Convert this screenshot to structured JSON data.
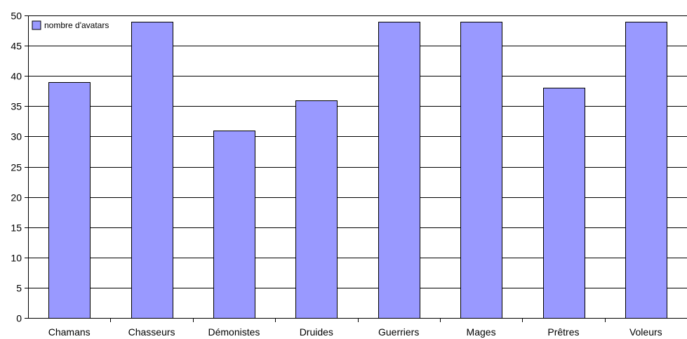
{
  "chart_data": {
    "type": "bar",
    "categories": [
      "Chamans",
      "Chasseurs",
      "Démonistes",
      "Druides",
      "Guerriers",
      "Mages",
      "Prêtres",
      "Voleurs"
    ],
    "series": [
      {
        "name": "nombre d'avatars",
        "values": [
          39,
          49,
          31,
          36,
          49,
          49,
          38,
          49
        ],
        "color": "#9999ff"
      }
    ],
    "title": "",
    "xlabel": "",
    "ylabel": "",
    "ylim": [
      0,
      50
    ],
    "yticks": [
      "0",
      "5",
      "10",
      "15",
      "20",
      "25",
      "30",
      "35",
      "40",
      "45",
      "50"
    ],
    "grid": true,
    "legend_position": "top-left"
  }
}
